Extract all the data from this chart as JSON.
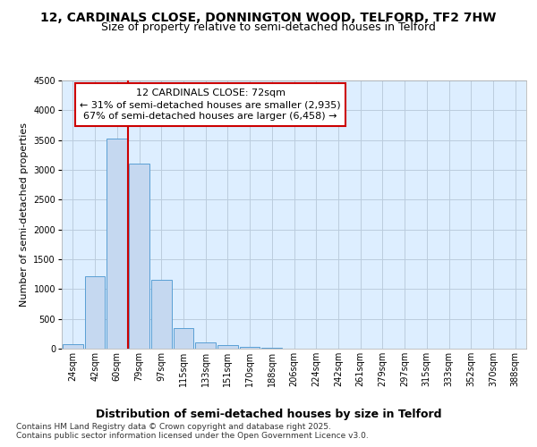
{
  "title": "12, CARDINALS CLOSE, DONNINGTON WOOD, TELFORD, TF2 7HW",
  "subtitle": "Size of property relative to semi-detached houses in Telford",
  "xlabel": "Distribution of semi-detached houses by size in Telford",
  "ylabel": "Number of semi-detached properties",
  "categories": [
    "24sqm",
    "42sqm",
    "60sqm",
    "79sqm",
    "97sqm",
    "115sqm",
    "133sqm",
    "151sqm",
    "170sqm",
    "188sqm",
    "206sqm",
    "224sqm",
    "242sqm",
    "261sqm",
    "279sqm",
    "297sqm",
    "315sqm",
    "333sqm",
    "352sqm",
    "370sqm",
    "388sqm"
  ],
  "values": [
    80,
    1210,
    3520,
    3110,
    1150,
    340,
    105,
    65,
    30,
    10,
    5,
    2,
    1,
    1,
    0,
    0,
    0,
    0,
    0,
    0,
    0
  ],
  "bar_color": "#c5d8f0",
  "bar_edge_color": "#5a9fd4",
  "vline_x_index": 2.5,
  "vline_color": "#cc0000",
  "annotation_box_color": "#cc0000",
  "ylim": [
    0,
    4500
  ],
  "yticks": [
    0,
    500,
    1000,
    1500,
    2000,
    2500,
    3000,
    3500,
    4000,
    4500
  ],
  "background_color": "#ffffff",
  "plot_bg_color": "#ddeeff",
  "grid_color": "#bbccdd",
  "property_label": "12 CARDINALS CLOSE: 72sqm",
  "smaller_text": "← 31% of semi-detached houses are smaller (2,935)",
  "larger_text": "67% of semi-detached houses are larger (6,458) →",
  "footnote": "Contains HM Land Registry data © Crown copyright and database right 2025.\nContains public sector information licensed under the Open Government Licence v3.0.",
  "title_fontsize": 10,
  "subtitle_fontsize": 9,
  "xlabel_fontsize": 9,
  "ylabel_fontsize": 8,
  "tick_fontsize": 7,
  "annot_fontsize": 8,
  "footnote_fontsize": 6.5
}
